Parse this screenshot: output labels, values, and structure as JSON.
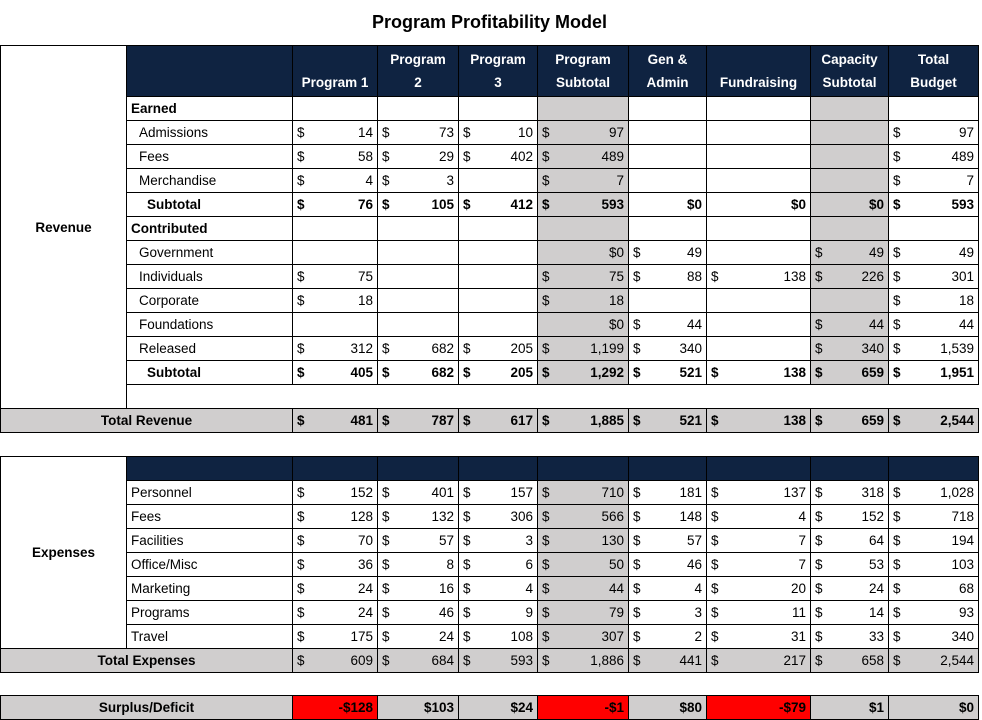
{
  "title": "Program Profitability Model",
  "columns": [
    "Program 1",
    "Program\n2",
    "Program\n3",
    "Program\nSubtotal",
    "Gen &\nAdmin",
    "Fundraising",
    "Capacity\nSubtotal",
    "Total\nBudget"
  ],
  "colors": {
    "header_navy": "#0f2341",
    "shade_gray": "#d0cece",
    "deficit_red": "#ff0000"
  },
  "revenue": {
    "side_label": "Revenue",
    "rows": [
      {
        "type": "section",
        "label": "Earned",
        "cells": [
          null,
          null,
          null,
          null,
          null,
          null,
          null,
          null
        ]
      },
      {
        "type": "item",
        "label": "Admissions",
        "cells": [
          "14",
          "73",
          "10",
          "97",
          null,
          null,
          null,
          "97"
        ]
      },
      {
        "type": "item",
        "label": "Fees",
        "cells": [
          "58",
          "29",
          "402",
          "489",
          null,
          null,
          null,
          "489"
        ]
      },
      {
        "type": "item",
        "label": "Merchandise",
        "cells": [
          "4",
          "3",
          null,
          "7",
          null,
          null,
          null,
          "7"
        ]
      },
      {
        "type": "subtotal",
        "label": "Subtotal",
        "cells": [
          "76",
          "105",
          "412",
          "593",
          "$0",
          "$0",
          "$0",
          "593"
        ]
      },
      {
        "type": "section",
        "label": "Contributed",
        "cells": [
          null,
          null,
          null,
          null,
          null,
          null,
          null,
          null
        ]
      },
      {
        "type": "item",
        "label": "Government",
        "cells": [
          null,
          null,
          null,
          "$0",
          "49",
          null,
          "49",
          "49"
        ]
      },
      {
        "type": "item",
        "label": "Individuals",
        "cells": [
          "75",
          null,
          null,
          "75",
          "88",
          "138",
          "226",
          "301"
        ]
      },
      {
        "type": "item",
        "label": "Corporate",
        "cells": [
          "18",
          null,
          null,
          "18",
          null,
          null,
          null,
          "18"
        ]
      },
      {
        "type": "item",
        "label": "Foundations",
        "cells": [
          null,
          null,
          null,
          "$0",
          "44",
          null,
          "44",
          "44"
        ]
      },
      {
        "type": "item",
        "label": "Released",
        "cells": [
          "312",
          "682",
          "205",
          "1,199",
          "340",
          null,
          "340",
          "1,539"
        ]
      },
      {
        "type": "subtotal",
        "label": "Subtotal",
        "cells": [
          "405",
          "682",
          "205",
          "1,292",
          "521",
          "138",
          "659",
          "1,951"
        ]
      }
    ],
    "total": {
      "label": "Total Revenue",
      "cells": [
        "481",
        "787",
        "617",
        "1,885",
        "521",
        "138",
        "659",
        "2,544"
      ]
    }
  },
  "expenses": {
    "side_label": "Expenses",
    "rows": [
      {
        "type": "plainlabel",
        "label": "Personnel",
        "cells": [
          "152",
          "401",
          "157",
          "710",
          "181",
          "137",
          "318",
          "1,028"
        ]
      },
      {
        "type": "plainlabel",
        "label": "Fees",
        "cells": [
          "128",
          "132",
          "306",
          "566",
          "148",
          "4",
          "152",
          "718"
        ]
      },
      {
        "type": "plainlabel",
        "label": "Facilities",
        "cells": [
          "70",
          "57",
          "3",
          "130",
          "57",
          "7",
          "64",
          "194"
        ]
      },
      {
        "type": "plainlabel",
        "label": "Office/Misc",
        "cells": [
          "36",
          "8",
          "6",
          "50",
          "46",
          "7",
          "53",
          "103"
        ]
      },
      {
        "type": "plainlabel",
        "label": "Marketing",
        "cells": [
          "24",
          "16",
          "4",
          "44",
          "4",
          "20",
          "24",
          "68"
        ]
      },
      {
        "type": "plainlabel",
        "label": "Programs",
        "cells": [
          "24",
          "46",
          "9",
          "79",
          "3",
          "11",
          "14",
          "93"
        ]
      },
      {
        "type": "plainlabel",
        "label": "Travel",
        "cells": [
          "175",
          "24",
          "108",
          "307",
          "2",
          "31",
          "33",
          "340"
        ]
      }
    ],
    "total": {
      "label": "Total Expenses",
      "cells": [
        "609",
        "684",
        "593",
        "1,886",
        "441",
        "217",
        "658",
        "2,544"
      ]
    }
  },
  "surplus": {
    "label": "Surplus/Deficit",
    "cells": [
      "-$128",
      "$103",
      "$24",
      "-$1",
      "$80",
      "-$79",
      "$1",
      "$0"
    ],
    "deficit": [
      true,
      false,
      false,
      true,
      false,
      true,
      false,
      false
    ]
  }
}
